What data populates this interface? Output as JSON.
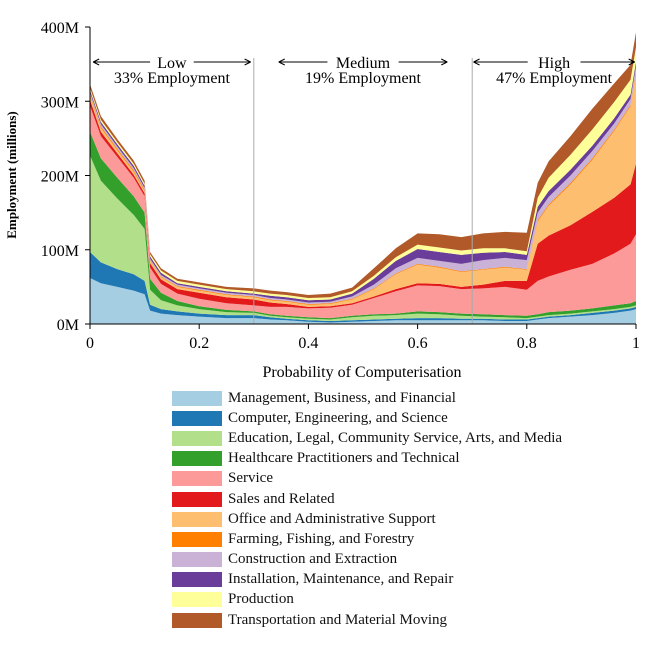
{
  "chart_data": {
    "type": "area",
    "xlabel": "Probability of Computerisation",
    "ylabel": "Employment (millions)",
    "xlim": [
      0,
      1
    ],
    "ylim": [
      0,
      400
    ],
    "x_ticks": [
      "0",
      "0.2",
      "0.4",
      "0.6",
      "0.8",
      "1"
    ],
    "x_tick_values": [
      0,
      0.2,
      0.4,
      0.6,
      0.8,
      1
    ],
    "y_ticks": [
      "0M",
      "100M",
      "200M",
      "300M",
      "400M"
    ],
    "y_tick_values": [
      0,
      100,
      200,
      300,
      400
    ],
    "grid": false,
    "legend_position": "bottom",
    "x": [
      0,
      0.02,
      0.05,
      0.08,
      0.1,
      0.11,
      0.13,
      0.16,
      0.2,
      0.25,
      0.3,
      0.33,
      0.36,
      0.4,
      0.44,
      0.48,
      0.52,
      0.56,
      0.6,
      0.64,
      0.68,
      0.72,
      0.76,
      0.8,
      0.82,
      0.84,
      0.88,
      0.92,
      0.96,
      0.99,
      1
    ],
    "series": [
      {
        "name": "Management, Business, and Financial",
        "color": "#a6cee3",
        "values": [
          62,
          55,
          50,
          45,
          40,
          18,
          14,
          12,
          10,
          8,
          8,
          6,
          5,
          3,
          2,
          3,
          4,
          5,
          5,
          5,
          5,
          5,
          4,
          4,
          6,
          8,
          10,
          12,
          15,
          18,
          20
        ]
      },
      {
        "name": "Computer, Engineering, and Science",
        "color": "#1f78b4",
        "values": [
          35,
          28,
          24,
          22,
          18,
          8,
          6,
          5,
          4,
          4,
          4,
          3,
          2,
          2,
          2,
          2,
          2,
          2,
          3,
          3,
          2,
          2,
          2,
          2,
          2,
          2,
          2,
          3,
          3,
          3,
          3
        ]
      },
      {
        "name": "Education, Legal, Community Service, Arts, and Media",
        "color": "#b2df8a",
        "values": [
          130,
          110,
          95,
          80,
          70,
          20,
          12,
          8,
          6,
          4,
          3,
          2,
          2,
          2,
          2,
          4,
          5,
          5,
          6,
          5,
          4,
          3,
          3,
          2,
          2,
          2,
          2,
          2,
          2,
          2,
          2
        ]
      },
      {
        "name": "Healthcare Practitioners and Technical",
        "color": "#33a02c",
        "values": [
          32,
          30,
          28,
          25,
          22,
          15,
          10,
          6,
          4,
          3,
          2,
          2,
          2,
          2,
          2,
          2,
          2,
          2,
          3,
          3,
          3,
          3,
          3,
          3,
          3,
          4,
          4,
          4,
          5,
          5,
          6
        ]
      },
      {
        "name": "Service",
        "color": "#fb9a99",
        "values": [
          35,
          30,
          28,
          25,
          22,
          15,
          12,
          10,
          10,
          9,
          8,
          10,
          12,
          12,
          14,
          15,
          22,
          30,
          35,
          35,
          33,
          35,
          38,
          35,
          45,
          48,
          55,
          60,
          70,
          80,
          90
        ]
      },
      {
        "name": "Sales and Related",
        "color": "#e31a1c",
        "values": [
          8,
          6,
          5,
          4,
          4,
          6,
          6,
          6,
          8,
          8,
          8,
          6,
          4,
          2,
          2,
          2,
          2,
          3,
          3,
          3,
          3,
          5,
          8,
          12,
          50,
          55,
          60,
          70,
          75,
          80,
          95
        ]
      },
      {
        "name": "Office and Administrative Support",
        "color": "#fdbf6f",
        "values": [
          5,
          5,
          4,
          4,
          3,
          3,
          3,
          3,
          3,
          3,
          3,
          3,
          3,
          3,
          3,
          5,
          10,
          20,
          25,
          22,
          20,
          20,
          18,
          15,
          30,
          40,
          55,
          70,
          90,
          105,
          120
        ]
      },
      {
        "name": "Farming, Fishing, and Forestry",
        "color": "#ff7f00",
        "values": [
          2,
          2,
          2,
          2,
          2,
          1,
          1,
          1,
          1,
          1,
          1,
          1,
          1,
          1,
          1,
          1,
          1,
          1,
          1,
          1,
          1,
          1,
          1,
          1,
          2,
          2,
          2,
          2,
          2,
          2,
          3
        ]
      },
      {
        "name": "Construction and Extraction",
        "color": "#cab2d6",
        "values": [
          3,
          3,
          3,
          3,
          2,
          2,
          2,
          2,
          2,
          2,
          2,
          2,
          2,
          2,
          2,
          3,
          5,
          7,
          8,
          8,
          10,
          12,
          12,
          12,
          10,
          10,
          10,
          10,
          8,
          8,
          8
        ]
      },
      {
        "name": "Installation, Maintenance, and Repair",
        "color": "#6a3d9a",
        "values": [
          3,
          3,
          3,
          3,
          3,
          3,
          3,
          2,
          2,
          2,
          2,
          3,
          3,
          3,
          3,
          4,
          8,
          10,
          12,
          12,
          12,
          10,
          8,
          7,
          8,
          8,
          8,
          7,
          7,
          6,
          6
        ]
      },
      {
        "name": "Production",
        "color": "#ffff99",
        "values": [
          3,
          3,
          3,
          3,
          3,
          3,
          3,
          3,
          3,
          3,
          3,
          3,
          3,
          3,
          3,
          3,
          4,
          5,
          6,
          6,
          6,
          6,
          5,
          5,
          12,
          18,
          20,
          22,
          22,
          20,
          20
        ]
      },
      {
        "name": "Transportation and Material Moving",
        "color": "#b15928",
        "values": [
          5,
          5,
          4,
          4,
          4,
          3,
          3,
          3,
          3,
          3,
          4,
          4,
          4,
          4,
          5,
          5,
          10,
          12,
          15,
          18,
          18,
          20,
          22,
          25,
          20,
          22,
          25,
          28,
          25,
          20,
          20
        ]
      }
    ],
    "annotations": [
      {
        "label": "Low",
        "detail": "33% Employment",
        "x_from": 0,
        "x_to": 0.3
      },
      {
        "label": "Medium",
        "detail": "19% Employment",
        "x_from": 0.3,
        "x_to": 0.7
      },
      {
        "label": "High",
        "detail": "47% Employment",
        "x_from": 0.7,
        "x_to": 1
      }
    ],
    "dividers": [
      0.3,
      0.7
    ]
  }
}
